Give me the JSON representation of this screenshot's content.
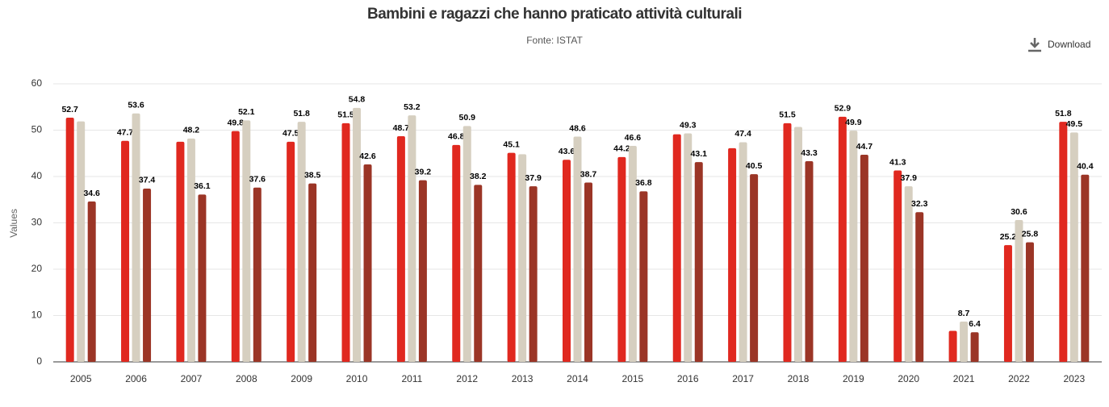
{
  "chart_data": {
    "type": "bar",
    "title": "Bambini e ragazzi che hanno praticato attività culturali",
    "subtitle": "Fonte: ISTAT",
    "download": "Download",
    "y_label": "Values",
    "categories": [
      "2005",
      "2006",
      "2007",
      "2008",
      "2009",
      "2010",
      "2011",
      "2012",
      "2013",
      "2014",
      "2015",
      "2016",
      "2017",
      "2018",
      "2019",
      "2020",
      "2021",
      "2022",
      "2023"
    ],
    "series": [
      {
        "color": "#e0281f",
        "values": [
          52.7,
          47.7,
          47.5,
          49.8,
          47.5,
          51.5,
          48.7,
          46.8,
          45.1,
          43.6,
          44.2,
          49.1,
          46.1,
          51.5,
          52.9,
          41.3,
          6.7,
          25.2,
          51.8
        ],
        "value_labels": [
          "52.7",
          "47.7",
          null,
          "49.8",
          "47.5",
          "51.5",
          "48.7",
          "46.8",
          "45.1",
          "43.6",
          "44.2",
          null,
          null,
          "51.5",
          "52.9",
          "41.3",
          null,
          "25.2",
          "51.8"
        ]
      },
      {
        "color": "#d6cfc0",
        "values": [
          51.9,
          53.6,
          48.2,
          52.1,
          51.8,
          54.8,
          53.2,
          50.9,
          44.8,
          48.6,
          46.6,
          49.3,
          47.4,
          50.7,
          49.9,
          37.9,
          8.7,
          30.6,
          49.5
        ],
        "value_labels": [
          null,
          "53.6",
          "48.2",
          "52.1",
          "51.8",
          "54.8",
          "53.2",
          "50.9",
          null,
          "48.6",
          "46.6",
          "49.3",
          "47.4",
          null,
          "49.9",
          "37.9",
          "8.7",
          "30.6",
          "49.5"
        ]
      },
      {
        "color": "#9b3526",
        "values": [
          34.6,
          37.4,
          36.1,
          37.6,
          38.5,
          42.6,
          39.2,
          38.2,
          37.9,
          38.7,
          36.8,
          43.1,
          40.5,
          43.3,
          44.7,
          32.3,
          6.4,
          25.8,
          40.4
        ],
        "value_labels": [
          "34.6",
          "37.4",
          "36.1",
          "37.6",
          "38.5",
          "42.6",
          "39.2",
          "38.2",
          "37.9",
          "38.7",
          "36.8",
          "43.1",
          "40.5",
          "43.3",
          "44.7",
          "32.3",
          "6.4",
          "25.8",
          "40.4"
        ]
      }
    ],
    "ylim": [
      0,
      60
    ],
    "yticks": [
      0,
      10,
      20,
      30,
      40,
      50,
      60
    ],
    "grid": true
  }
}
